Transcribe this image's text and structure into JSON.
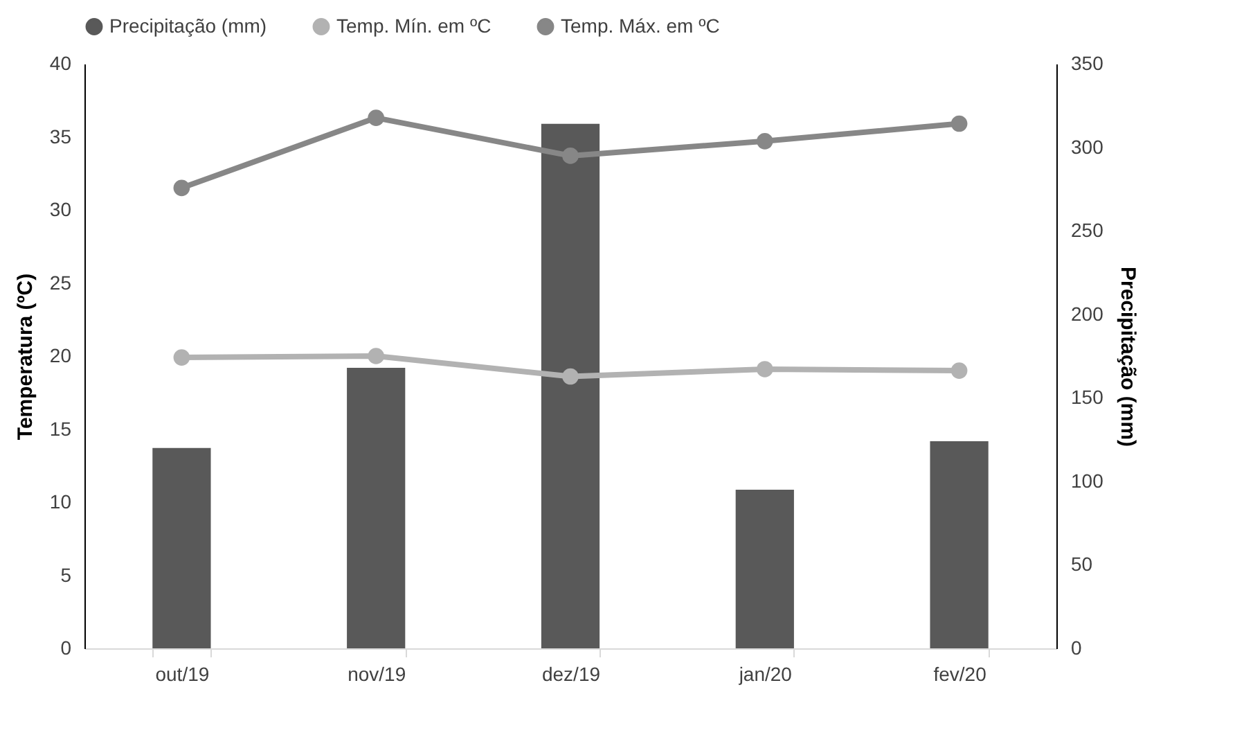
{
  "chart_data": {
    "type": "bar",
    "categories": [
      "out/19",
      "nov/19",
      "dez/19",
      "jan/20",
      "fev/20"
    ],
    "series": [
      {
        "name": "Precipitação (mm)",
        "axis": "y2",
        "color": "#595959",
        "values": [
          120,
          168,
          314,
          95,
          124
        ]
      },
      {
        "name": "Temp. Mín. em ºC",
        "type": "line",
        "color": "#b2b2b2",
        "values": [
          19.9,
          20.0,
          18.6,
          19.1,
          19.0
        ]
      },
      {
        "name": "Temp. Máx. em ºC",
        "type": "line",
        "color": "#878787",
        "values": [
          31.5,
          36.3,
          33.7,
          34.7,
          35.9
        ]
      }
    ],
    "ylabel": "Temperatura (ºC)",
    "y2label": "Precipitação (mm)",
    "ylim": [
      0,
      40
    ],
    "yticks": [
      0,
      5,
      10,
      15,
      20,
      25,
      30,
      35,
      40
    ],
    "y2lim": [
      0,
      350
    ],
    "y2ticks": [
      0,
      50,
      100,
      150,
      200,
      250,
      300,
      350
    ],
    "legend": "top",
    "grid": false,
    "marker": "circle",
    "line_style": "solid"
  }
}
